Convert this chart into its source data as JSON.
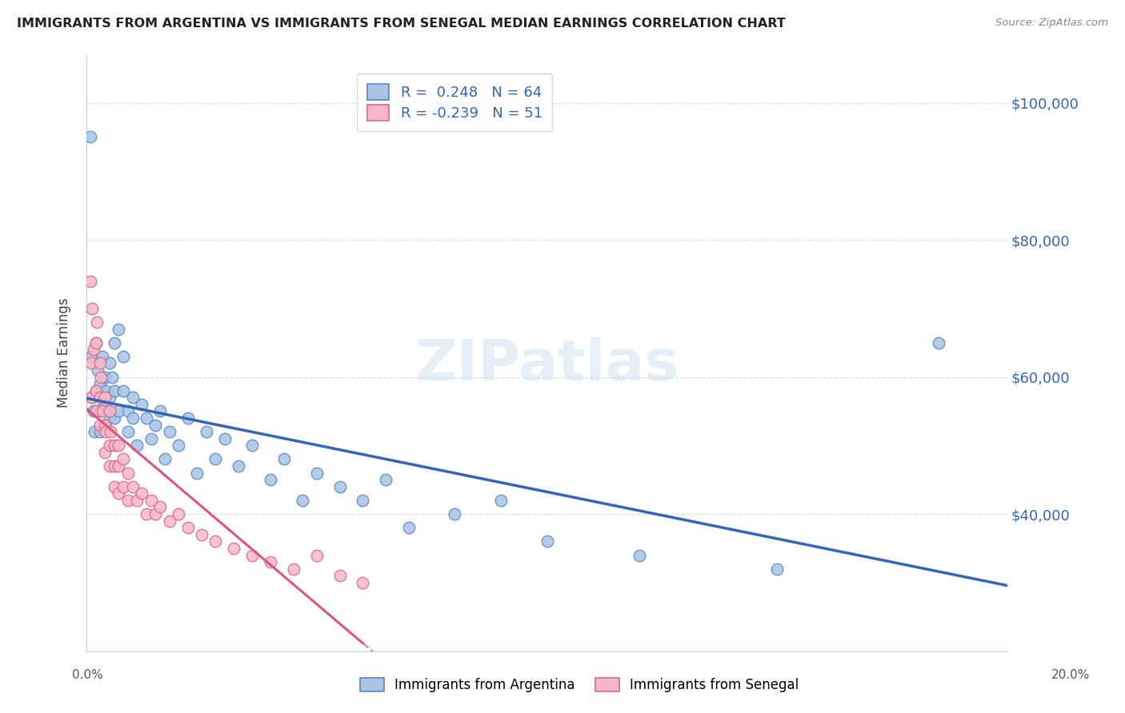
{
  "title": "IMMIGRANTS FROM ARGENTINA VS IMMIGRANTS FROM SENEGAL MEDIAN EARNINGS CORRELATION CHART",
  "source": "Source: ZipAtlas.com",
  "ylabel": "Median Earnings",
  "y_ticks": [
    40000,
    60000,
    80000,
    100000
  ],
  "y_tick_labels": [
    "$40,000",
    "$60,000",
    "$80,000",
    "$100,000"
  ],
  "x_range": [
    0.0,
    0.2
  ],
  "y_range": [
    20000,
    107000
  ],
  "argentina_color": "#aac4e2",
  "argentina_edge": "#5588cc",
  "senegal_color": "#f5b8ca",
  "senegal_edge": "#dd6688",
  "argentina_line_color": "#3366bb",
  "senegal_line_color": "#dd5577",
  "R_argentina": 0.248,
  "N_argentina": 64,
  "R_senegal": -0.239,
  "N_senegal": 51,
  "legend_label_argentina": "Immigrants from Argentina",
  "legend_label_senegal": "Immigrants from Senegal",
  "argentina_x": [
    0.0008,
    0.001,
    0.0012,
    0.0015,
    0.0018,
    0.002,
    0.002,
    0.0022,
    0.0025,
    0.003,
    0.003,
    0.003,
    0.0032,
    0.0035,
    0.004,
    0.004,
    0.004,
    0.0042,
    0.0045,
    0.005,
    0.005,
    0.005,
    0.0055,
    0.006,
    0.006,
    0.006,
    0.007,
    0.007,
    0.008,
    0.008,
    0.009,
    0.009,
    0.01,
    0.01,
    0.011,
    0.012,
    0.013,
    0.014,
    0.015,
    0.016,
    0.017,
    0.018,
    0.02,
    0.022,
    0.024,
    0.026,
    0.028,
    0.03,
    0.033,
    0.036,
    0.04,
    0.043,
    0.047,
    0.05,
    0.055,
    0.06,
    0.065,
    0.07,
    0.08,
    0.09,
    0.1,
    0.12,
    0.15,
    0.185
  ],
  "argentina_y": [
    95000,
    63000,
    57000,
    55000,
    52000,
    65000,
    58000,
    55000,
    61000,
    59000,
    55000,
    52000,
    57000,
    63000,
    60000,
    56000,
    53000,
    58000,
    55000,
    62000,
    57000,
    54000,
    60000,
    65000,
    58000,
    54000,
    67000,
    55000,
    63000,
    58000,
    55000,
    52000,
    57000,
    54000,
    50000,
    56000,
    54000,
    51000,
    53000,
    55000,
    48000,
    52000,
    50000,
    54000,
    46000,
    52000,
    48000,
    51000,
    47000,
    50000,
    45000,
    48000,
    42000,
    46000,
    44000,
    42000,
    45000,
    38000,
    40000,
    42000,
    36000,
    34000,
    32000,
    65000
  ],
  "senegal_x": [
    0.0008,
    0.001,
    0.001,
    0.0012,
    0.0015,
    0.002,
    0.002,
    0.002,
    0.0022,
    0.003,
    0.003,
    0.003,
    0.0032,
    0.0035,
    0.004,
    0.004,
    0.004,
    0.0042,
    0.005,
    0.005,
    0.005,
    0.0052,
    0.006,
    0.006,
    0.006,
    0.007,
    0.007,
    0.007,
    0.008,
    0.008,
    0.009,
    0.009,
    0.01,
    0.011,
    0.012,
    0.013,
    0.014,
    0.015,
    0.016,
    0.018,
    0.02,
    0.022,
    0.025,
    0.028,
    0.032,
    0.036,
    0.04,
    0.045,
    0.05,
    0.055,
    0.06
  ],
  "senegal_y": [
    74000,
    62000,
    57000,
    70000,
    64000,
    65000,
    58000,
    55000,
    68000,
    62000,
    57000,
    53000,
    60000,
    55000,
    57000,
    53000,
    49000,
    52000,
    55000,
    50000,
    47000,
    52000,
    50000,
    47000,
    44000,
    50000,
    47000,
    43000,
    48000,
    44000,
    46000,
    42000,
    44000,
    42000,
    43000,
    40000,
    42000,
    40000,
    41000,
    39000,
    40000,
    38000,
    37000,
    36000,
    35000,
    34000,
    33000,
    32000,
    34000,
    31000,
    30000
  ]
}
